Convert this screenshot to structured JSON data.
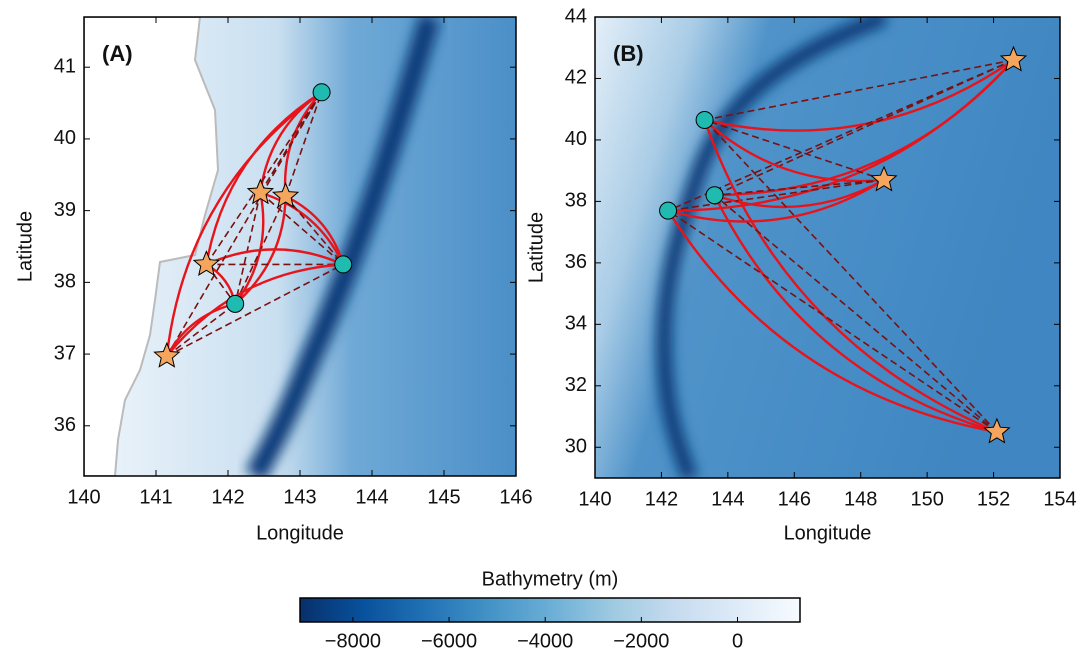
{
  "chart_data": [
    {
      "type": "scatter",
      "label": "(A)",
      "x_label": "Longitude",
      "y_label": "Latitude",
      "xlim": [
        140,
        146
      ],
      "ylim": [
        35.3,
        41.7
      ],
      "xticks": [
        140,
        141,
        142,
        143,
        144,
        145,
        146
      ],
      "yticks": [
        36,
        37,
        38,
        39,
        40,
        41
      ],
      "stations": {
        "color": "#1fbab0",
        "x": [
          143.3,
          143.6,
          142.1
        ],
        "y": [
          40.65,
          38.25,
          37.7
        ]
      },
      "sources": {
        "color": "#f4a55e",
        "x": [
          142.45,
          142.8,
          141.7,
          141.15
        ],
        "y": [
          39.25,
          39.2,
          38.25,
          36.97
        ]
      }
    },
    {
      "type": "scatter",
      "label": "(B)",
      "x_label": "Longitude",
      "y_label": "Latitude",
      "xlim": [
        140,
        154
      ],
      "ylim": [
        29,
        44
      ],
      "xticks": [
        140,
        142,
        144,
        146,
        148,
        150,
        152,
        154
      ],
      "yticks": [
        30,
        32,
        34,
        36,
        38,
        40,
        42,
        44
      ],
      "stations": {
        "color": "#1fbab0",
        "x": [
          143.3,
          143.6,
          142.2
        ],
        "y": [
          40.65,
          38.2,
          37.7
        ]
      },
      "sources": {
        "color": "#f4a55e",
        "x": [
          152.6,
          148.7,
          152.1
        ],
        "y": [
          42.6,
          38.7,
          30.5
        ]
      }
    },
    {
      "type": "colorbar",
      "label": "Bathymetry (m)",
      "xlim": [
        -9100,
        1300
      ],
      "xticks": [
        {
          "value": -8000,
          "label": "−8000"
        },
        {
          "value": -6000,
          "label": "−6000"
        },
        {
          "value": -4000,
          "label": "−4000"
        },
        {
          "value": -2000,
          "label": "−2000"
        },
        0
      ],
      "colors": [
        "#08306b",
        "#08519c",
        "#2171b5",
        "#4292c6",
        "#6baed6",
        "#9ecae1",
        "#c6dbef",
        "#deebf7",
        "#f7fbff"
      ]
    }
  ]
}
